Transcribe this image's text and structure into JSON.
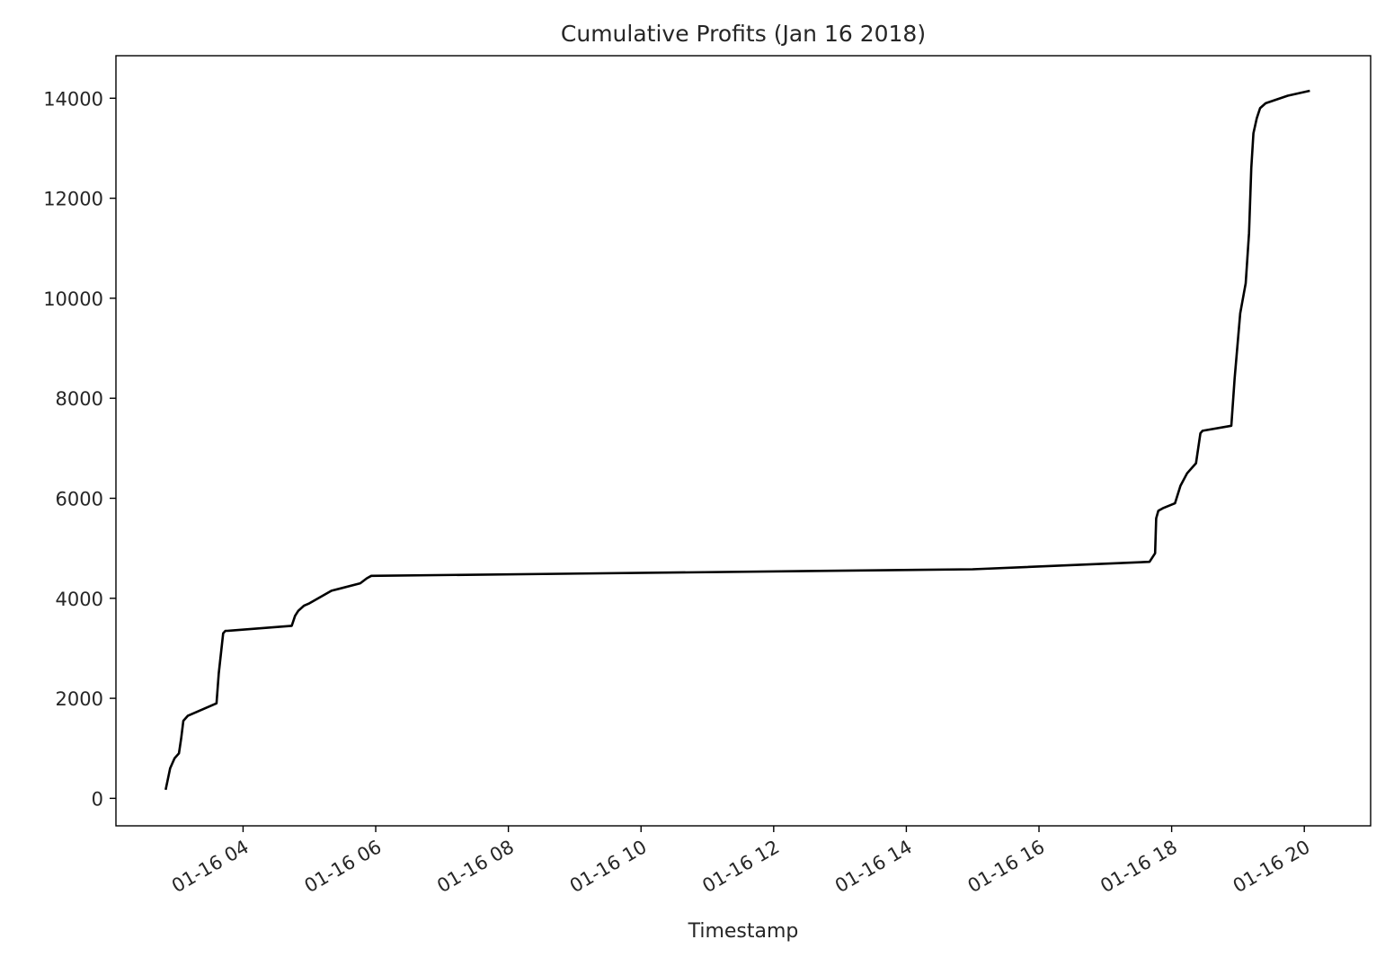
{
  "chart_data": {
    "type": "line",
    "title": "Cumulative Profits (Jan 16 2018)",
    "xlabel": "Timestamp",
    "ylabel": "",
    "x_type": "datetime",
    "xlim": [
      "2018-01-16T02:05",
      "2018-01-16T21:00"
    ],
    "ylim": [
      -550,
      14850
    ],
    "x_ticks": [
      {
        "value": "2018-01-16T04:00",
        "label": "01-16 04"
      },
      {
        "value": "2018-01-16T06:00",
        "label": "01-16 06"
      },
      {
        "value": "2018-01-16T08:00",
        "label": "01-16 08"
      },
      {
        "value": "2018-01-16T10:00",
        "label": "01-16 10"
      },
      {
        "value": "2018-01-16T12:00",
        "label": "01-16 12"
      },
      {
        "value": "2018-01-16T14:00",
        "label": "01-16 14"
      },
      {
        "value": "2018-01-16T16:00",
        "label": "01-16 16"
      },
      {
        "value": "2018-01-16T18:00",
        "label": "01-16 18"
      },
      {
        "value": "2018-01-16T20:00",
        "label": "01-16 20"
      }
    ],
    "y_ticks": [
      {
        "value": 0,
        "label": "0"
      },
      {
        "value": 2000,
        "label": "2000"
      },
      {
        "value": 4000,
        "label": "4000"
      },
      {
        "value": 6000,
        "label": "6000"
      },
      {
        "value": 8000,
        "label": "8000"
      },
      {
        "value": 10000,
        "label": "10000"
      },
      {
        "value": 12000,
        "label": "12000"
      },
      {
        "value": 14000,
        "label": "14000"
      }
    ],
    "grid": false,
    "legend": "none",
    "line_color": "#000000",
    "series": [
      {
        "x": [
          "2018-01-16T02:50",
          "2018-01-16T02:54",
          "2018-01-16T02:58",
          "2018-01-16T03:02",
          "2018-01-16T03:04",
          "2018-01-16T03:06",
          "2018-01-16T03:10",
          "2018-01-16T03:36",
          "2018-01-16T03:38",
          "2018-01-16T03:42",
          "2018-01-16T03:44",
          "2018-01-16T03:46",
          "2018-01-16T04:44",
          "2018-01-16T04:47",
          "2018-01-16T04:50",
          "2018-01-16T04:55",
          "2018-01-16T05:00",
          "2018-01-16T05:20",
          "2018-01-16T05:46",
          "2018-01-16T05:52",
          "2018-01-16T05:56",
          "2018-01-16T15:00",
          "2018-01-16T17:40",
          "2018-01-16T17:45",
          "2018-01-16T17:46",
          "2018-01-16T17:48",
          "2018-01-16T17:52",
          "2018-01-16T18:03",
          "2018-01-16T18:08",
          "2018-01-16T18:14",
          "2018-01-16T18:22",
          "2018-01-16T18:26",
          "2018-01-16T18:28",
          "2018-01-16T18:54",
          "2018-01-16T18:57",
          "2018-01-16T19:02",
          "2018-01-16T19:07",
          "2018-01-16T19:10",
          "2018-01-16T19:12",
          "2018-01-16T19:14",
          "2018-01-16T19:17",
          "2018-01-16T19:20",
          "2018-01-16T19:25",
          "2018-01-16T19:45",
          "2018-01-16T20:05"
        ],
        "y": [
          170,
          600,
          800,
          900,
          1200,
          1550,
          1650,
          1900,
          2500,
          3300,
          3350,
          3350,
          3450,
          3650,
          3750,
          3850,
          3900,
          4150,
          4300,
          4400,
          4450,
          4580,
          4730,
          4900,
          5600,
          5750,
          5800,
          5900,
          6250,
          6500,
          6700,
          7300,
          7350,
          7450,
          8400,
          9700,
          10300,
          11300,
          12600,
          13300,
          13600,
          13800,
          13900,
          14050,
          14150
        ]
      }
    ]
  }
}
